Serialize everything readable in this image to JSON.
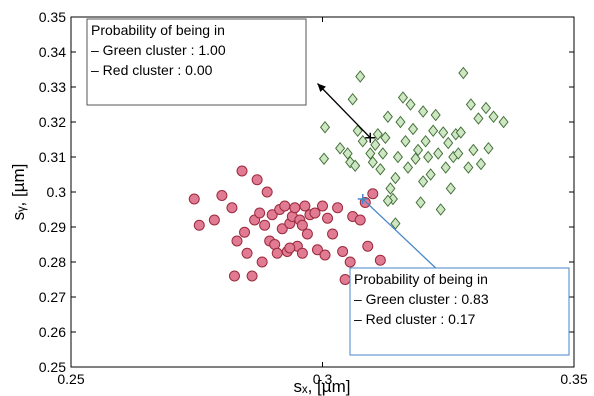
{
  "chart_data": {
    "type": "scatter",
    "xlabel": "sₓ, [µm]",
    "ylabel": "sᵧ, [µm]",
    "xlim": [
      0.25,
      0.35
    ],
    "ylim": [
      0.25,
      0.35
    ],
    "x_ticks": [
      "0.25",
      "0.3",
      "0.35"
    ],
    "y_ticks": [
      "0.25",
      "0.26",
      "0.27",
      "0.28",
      "0.29",
      "0.3",
      "0.31",
      "0.32",
      "0.33",
      "0.34",
      "0.35"
    ],
    "grid": false,
    "series": [
      {
        "marker": "diamond",
        "color": "#cfe6c4",
        "edge_color": "#3f6e34",
        "points": [
          [
            0.3005,
            0.3185
          ],
          [
            0.3003,
            0.3095
          ],
          [
            0.3035,
            0.3125
          ],
          [
            0.305,
            0.311
          ],
          [
            0.3055,
            0.3085
          ],
          [
            0.306,
            0.3265
          ],
          [
            0.3065,
            0.3075
          ],
          [
            0.307,
            0.3175
          ],
          [
            0.3075,
            0.333
          ],
          [
            0.308,
            0.3145
          ],
          [
            0.3095,
            0.311
          ],
          [
            0.31,
            0.3085
          ],
          [
            0.3105,
            0.3135
          ],
          [
            0.311,
            0.3165
          ],
          [
            0.3115,
            0.3065
          ],
          [
            0.312,
            0.311
          ],
          [
            0.3125,
            0.3155
          ],
          [
            0.313,
            0.3215
          ],
          [
            0.3135,
            0.301
          ],
          [
            0.314,
            0.298
          ],
          [
            0.3145,
            0.304
          ],
          [
            0.315,
            0.31
          ],
          [
            0.3155,
            0.32
          ],
          [
            0.316,
            0.327
          ],
          [
            0.3165,
            0.3145
          ],
          [
            0.317,
            0.307
          ],
          [
            0.3175,
            0.325
          ],
          [
            0.318,
            0.318
          ],
          [
            0.3185,
            0.3095
          ],
          [
            0.319,
            0.312
          ],
          [
            0.3195,
            0.297
          ],
          [
            0.32,
            0.303
          ],
          [
            0.32,
            0.323
          ],
          [
            0.3205,
            0.3145
          ],
          [
            0.321,
            0.31
          ],
          [
            0.3215,
            0.305
          ],
          [
            0.322,
            0.3175
          ],
          [
            0.3225,
            0.322
          ],
          [
            0.323,
            0.311
          ],
          [
            0.3235,
            0.295
          ],
          [
            0.324,
            0.317
          ],
          [
            0.3245,
            0.307
          ],
          [
            0.325,
            0.314
          ],
          [
            0.3255,
            0.301
          ],
          [
            0.326,
            0.31
          ],
          [
            0.3265,
            0.3165
          ],
          [
            0.327,
            0.311
          ],
          [
            0.3275,
            0.317
          ],
          [
            0.328,
            0.334
          ],
          [
            0.329,
            0.307
          ],
          [
            0.3295,
            0.325
          ],
          [
            0.33,
            0.312
          ],
          [
            0.331,
            0.321
          ],
          [
            0.3315,
            0.308
          ],
          [
            0.3325,
            0.324
          ],
          [
            0.333,
            0.3125
          ],
          [
            0.334,
            0.3215
          ],
          [
            0.336,
            0.32
          ],
          [
            0.3145,
            0.291
          ],
          [
            0.313,
            0.2975
          ]
        ]
      },
      {
        "marker": "circle",
        "color": "#e07b93",
        "edge_color": "#9b2a3c",
        "points": [
          [
            0.2745,
            0.298
          ],
          [
            0.2755,
            0.2905
          ],
          [
            0.2785,
            0.292
          ],
          [
            0.28,
            0.299
          ],
          [
            0.282,
            0.2955
          ],
          [
            0.283,
            0.286
          ],
          [
            0.284,
            0.306
          ],
          [
            0.2845,
            0.2885
          ],
          [
            0.285,
            0.2825
          ],
          [
            0.286,
            0.276
          ],
          [
            0.2865,
            0.292
          ],
          [
            0.287,
            0.3035
          ],
          [
            0.2875,
            0.294
          ],
          [
            0.288,
            0.28
          ],
          [
            0.2885,
            0.2905
          ],
          [
            0.289,
            0.3
          ],
          [
            0.2895,
            0.286
          ],
          [
            0.29,
            0.2935
          ],
          [
            0.2905,
            0.285
          ],
          [
            0.291,
            0.2825
          ],
          [
            0.2915,
            0.295
          ],
          [
            0.292,
            0.2895
          ],
          [
            0.2925,
            0.296
          ],
          [
            0.293,
            0.283
          ],
          [
            0.2935,
            0.291
          ],
          [
            0.294,
            0.293
          ],
          [
            0.2945,
            0.2955
          ],
          [
            0.295,
            0.2845
          ],
          [
            0.2955,
            0.292
          ],
          [
            0.296,
            0.2905
          ],
          [
            0.2965,
            0.296
          ],
          [
            0.297,
            0.288
          ],
          [
            0.2975,
            0.2935
          ],
          [
            0.2985,
            0.294
          ],
          [
            0.299,
            0.2835
          ],
          [
            0.3,
            0.296
          ],
          [
            0.3005,
            0.282
          ],
          [
            0.301,
            0.2925
          ],
          [
            0.302,
            0.288
          ],
          [
            0.303,
            0.2955
          ],
          [
            0.304,
            0.283
          ],
          [
            0.3045,
            0.275
          ],
          [
            0.3055,
            0.28
          ],
          [
            0.306,
            0.293
          ],
          [
            0.3075,
            0.292
          ],
          [
            0.3085,
            0.297
          ],
          [
            0.309,
            0.2845
          ],
          [
            0.31,
            0.2995
          ],
          [
            0.3115,
            0.2805
          ],
          [
            0.2825,
            0.276
          ],
          [
            0.2935,
            0.284
          ],
          [
            0.296,
            0.2825
          ]
        ]
      }
    ],
    "annotations": [
      {
        "lines": [
          "Probability of being in",
          "– Green cluster :   1.00",
          "– Red cluster     :   0.00"
        ],
        "border_color": "#555555",
        "arrow_color": "#000000",
        "point": [
          0.3095,
          0.3155
        ],
        "arrow_to": [
          0.299,
          0.331
        ],
        "marker": "plus"
      },
      {
        "lines": [
          "Probability of being in",
          "– Green cluster :   0.83",
          "– Red cluster     :   0.17"
        ],
        "border_color": "#4a86c8",
        "arrow_color": "#4a86c8",
        "point": [
          0.308,
          0.298
        ],
        "arrow_to": [
          0.3275,
          0.2715
        ],
        "marker": "plus"
      }
    ]
  }
}
